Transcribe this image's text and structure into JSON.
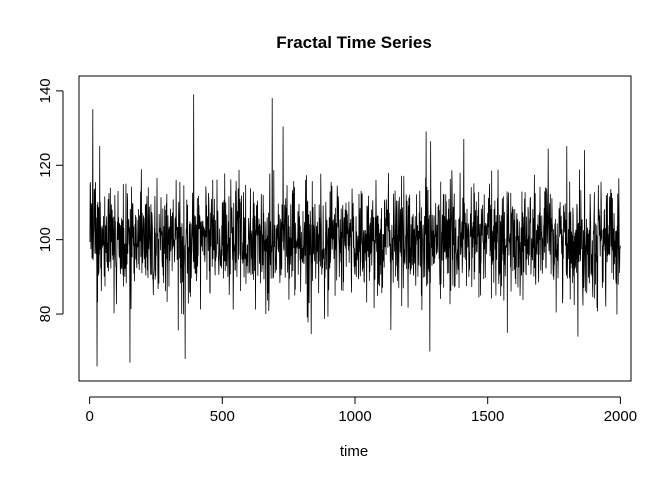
{
  "chart_data": {
    "type": "line",
    "title": "Fractal Time Series",
    "xlabel": "time",
    "ylabel": "",
    "xlim": [
      -40,
      2040
    ],
    "ylim": [
      62,
      144
    ],
    "x_ticks": [
      0,
      500,
      1000,
      1500,
      2000
    ],
    "y_ticks": [
      80,
      100,
      120,
      140
    ],
    "grid": false,
    "legend": "none",
    "line_color": "#000000",
    "series": [
      {
        "n_points": 2000,
        "x_start": 1,
        "x_end": 2000,
        "mean": 100,
        "std": 7.5,
        "min": 66,
        "max": 139,
        "notable_points": [
          {
            "x": 12,
            "y": 135
          },
          {
            "x": 28,
            "y": 66
          },
          {
            "x": 152,
            "y": 67
          },
          {
            "x": 360,
            "y": 68
          },
          {
            "x": 392,
            "y": 139
          },
          {
            "x": 688,
            "y": 138
          },
          {
            "x": 1268,
            "y": 129
          },
          {
            "x": 1282,
            "y": 70
          },
          {
            "x": 1410,
            "y": 127
          },
          {
            "x": 1840,
            "y": 74
          },
          {
            "x": 1865,
            "y": 124
          }
        ]
      }
    ]
  }
}
